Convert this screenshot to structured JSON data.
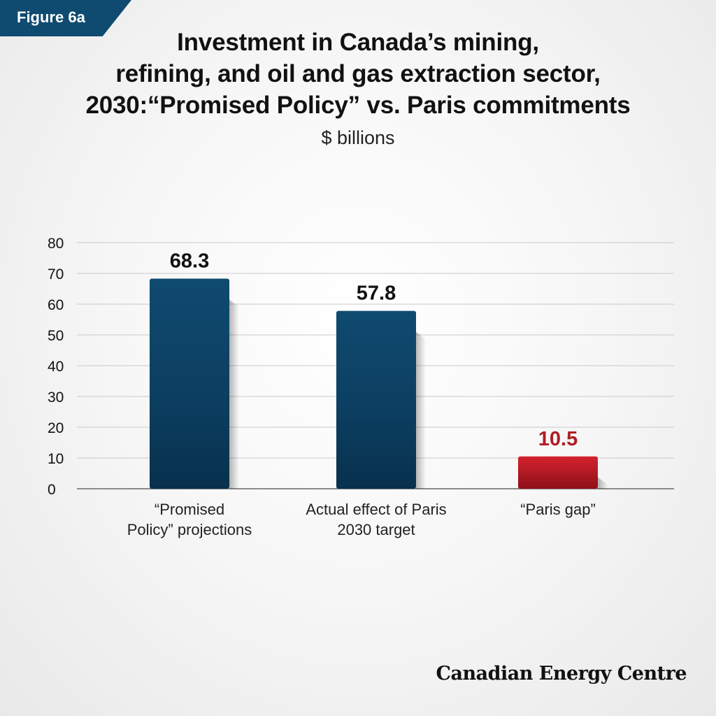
{
  "figure_tag": "Figure 6a",
  "title_lines": [
    "Investment in Canada’s mining,",
    "refining, and oil and gas extraction sector,",
    "2030:“Promised Policy” vs. Paris commitments"
  ],
  "subtitle": "$ billions",
  "brand": "Canadian Energy Centre",
  "colors": {
    "bar_blue": "#0f4a70",
    "bar_blue_dark": "#08314d",
    "bar_red": "#c8202c",
    "bar_red_dark": "#8f1018",
    "label_dark": "#111111",
    "label_red": "#b01c25",
    "tag_bg": "#0f4a70"
  },
  "chart_data": {
    "type": "bar",
    "title": "Investment in Canada’s mining, refining, and oil and gas extraction sector, 2030:“Promised Policy” vs. Paris commitments",
    "ylabel": "$ billions",
    "xlabel": "",
    "ylim": [
      0,
      80
    ],
    "yticks": [
      0,
      10,
      20,
      30,
      40,
      50,
      60,
      70,
      80
    ],
    "grid": true,
    "categories": [
      [
        "“Promised",
        "Policy” projections"
      ],
      [
        "Actual effect of Paris",
        "2030 target"
      ],
      [
        "“Paris gap”"
      ]
    ],
    "values": [
      68.3,
      57.8,
      10.5
    ],
    "value_labels": [
      "68.3",
      "57.8",
      "10.5"
    ],
    "bar_colors": [
      "blue",
      "blue",
      "red"
    ]
  }
}
